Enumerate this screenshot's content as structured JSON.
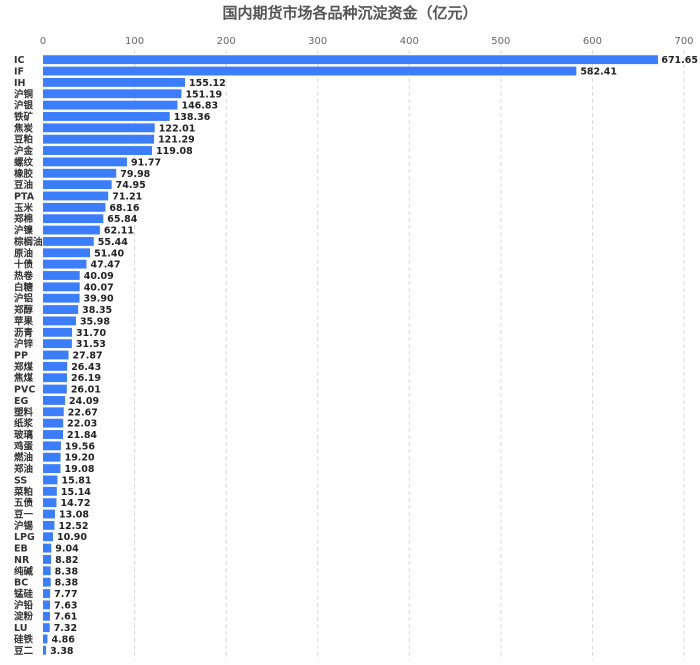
{
  "chart_data": {
    "type": "bar",
    "orientation": "horizontal",
    "title": "国内期货市场各品种沉淀资金（亿元）",
    "xlim": [
      0,
      700
    ],
    "xticks": [
      0,
      100,
      200,
      300,
      400,
      500,
      600,
      700
    ],
    "grid": true,
    "bar_color": "#3b7dfa",
    "categories": [
      "IC",
      "IF",
      "IH",
      "沪铜",
      "沪银",
      "铁矿",
      "焦炭",
      "豆粕",
      "沪金",
      "螺纹",
      "橡胶",
      "豆油",
      "PTA",
      "玉米",
      "郑棉",
      "沪镍",
      "棕榈油",
      "原油",
      "十债",
      "热卷",
      "白糖",
      "沪铝",
      "郑醇",
      "苹果",
      "沥青",
      "沪锌",
      "PP",
      "郑煤",
      "焦煤",
      "PVC",
      "EG",
      "塑料",
      "纸浆",
      "玻璃",
      "鸡蛋",
      "燃油",
      "郑油",
      "SS",
      "菜粕",
      "五债",
      "豆一",
      "沪锡",
      "LPG",
      "EB",
      "NR",
      "纯碱",
      "BC",
      "锰硅",
      "沪铅",
      "淀粉",
      "LU",
      "硅铁",
      "豆二"
    ],
    "values": [
      671.65,
      582.41,
      155.12,
      151.19,
      146.83,
      138.36,
      122.01,
      121.29,
      119.08,
      91.77,
      79.98,
      74.95,
      71.21,
      68.16,
      65.84,
      62.11,
      55.44,
      51.4,
      47.47,
      40.09,
      40.07,
      39.9,
      38.35,
      35.98,
      31.7,
      31.53,
      27.87,
      26.43,
      26.19,
      26.01,
      24.09,
      22.67,
      22.03,
      21.84,
      19.56,
      19.2,
      19.08,
      15.81,
      15.14,
      14.72,
      13.08,
      12.52,
      10.9,
      9.04,
      8.82,
      8.38,
      8.38,
      7.77,
      7.63,
      7.61,
      7.32,
      4.86,
      3.38
    ],
    "value_labels": [
      "671.65",
      "582.41",
      "155.12",
      "151.19",
      "146.83",
      "138.36",
      "122.01",
      "121.29",
      "119.08",
      "91.77",
      "79.98",
      "74.95",
      "71.21",
      "68.16",
      "65.84",
      "62.11",
      "55.44",
      "51.40",
      "47.47",
      "40.09",
      "40.07",
      "39.90",
      "38.35",
      "35.98",
      "31.70",
      "31.53",
      "27.87",
      "26.43",
      "26.19",
      "26.01",
      "24.09",
      "22.67",
      "22.03",
      "21.84",
      "19.56",
      "19.20",
      "19.08",
      "15.81",
      "15.14",
      "14.72",
      "13.08",
      "12.52",
      "10.90",
      "9.04",
      "8.82",
      "8.38",
      "8.38",
      "7.77",
      "7.63",
      "7.61",
      "7.32",
      "4.86",
      "3.38"
    ]
  }
}
